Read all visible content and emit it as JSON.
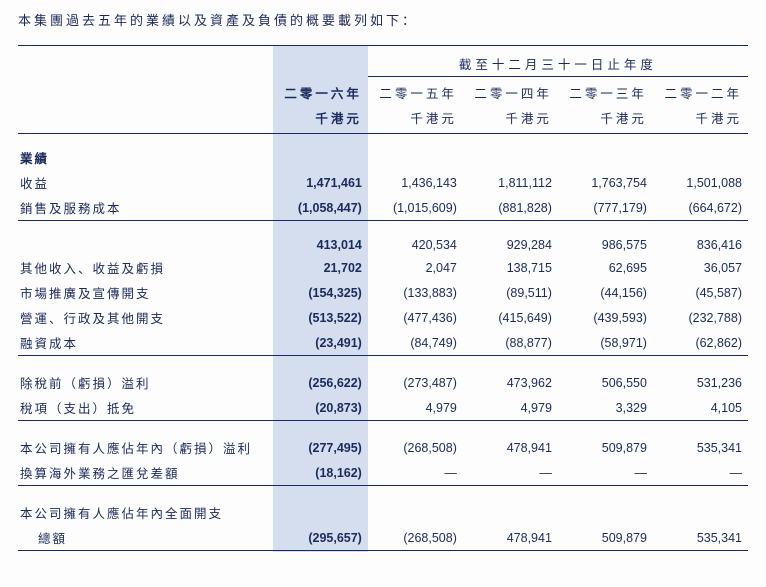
{
  "intro": "本集團過去五年的業績以及資產及負債的概要載列如下：",
  "period_header": "截至十二月三十一日止年度",
  "years": [
    "二零一六年",
    "二零一五年",
    "二零一四年",
    "二零一三年",
    "二零一二年"
  ],
  "unit": "千港元",
  "colors": {
    "text": "#1a2a5c",
    "highlight_bg": "#d5deef",
    "rule": "#1a2a5c",
    "page_bg": "#fdfdfd"
  },
  "section1_title": "業績",
  "rows": {
    "revenue": {
      "label": "收益",
      "v": [
        "1,471,461",
        "1,436,143",
        "1,811,112",
        "1,763,754",
        "1,501,088"
      ]
    },
    "cost": {
      "label": "銷售及服務成本",
      "v": [
        "(1,058,447)",
        "(1,015,609)",
        "(881,828)",
        "(777,179)",
        "(664,672)"
      ]
    },
    "gross": {
      "label": "",
      "v": [
        "413,014",
        "420,534",
        "929,284",
        "986,575",
        "836,416"
      ]
    },
    "other_income": {
      "label": "其他收入、收益及虧損",
      "v": [
        "21,702",
        "2,047",
        "138,715",
        "62,695",
        "36,057"
      ]
    },
    "marketing": {
      "label": "市場推廣及宣傳開支",
      "v": [
        "(154,325)",
        "(133,883)",
        "(89,511)",
        "(44,156)",
        "(45,587)"
      ]
    },
    "admin": {
      "label": "營運、行政及其他開支",
      "v": [
        "(513,522)",
        "(477,436)",
        "(415,649)",
        "(439,593)",
        "(232,788)"
      ]
    },
    "finance": {
      "label": "融資成本",
      "v": [
        "(23,491)",
        "(84,749)",
        "(88,877)",
        "(58,971)",
        "(62,862)"
      ]
    },
    "pbt": {
      "label": "除稅前（虧損）溢利",
      "v": [
        "(256,622)",
        "(273,487)",
        "473,962",
        "506,550",
        "531,236"
      ]
    },
    "tax": {
      "label": "稅項（支出）抵免",
      "v": [
        "(20,873)",
        "4,979",
        "4,979",
        "3,329",
        "4,105"
      ]
    },
    "attrib": {
      "label": "本公司擁有人應佔年內（虧損）溢利",
      "v": [
        "(277,495)",
        "(268,508)",
        "478,941",
        "509,879",
        "535,341"
      ]
    },
    "fx": {
      "label": "換算海外業務之匯兌差額",
      "v": [
        "(18,162)",
        "—",
        "—",
        "—",
        "—"
      ]
    },
    "total_line1": {
      "label": "本公司擁有人應佔年內全面開支"
    },
    "total": {
      "label": "總額",
      "v": [
        "(295,657)",
        "(268,508)",
        "478,941",
        "509,879",
        "535,341"
      ]
    }
  }
}
